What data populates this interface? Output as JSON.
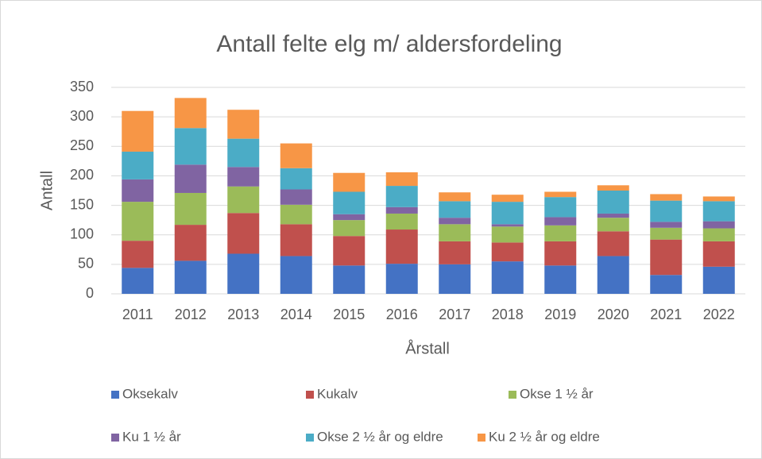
{
  "chart_data": {
    "type": "stacked_bar",
    "title": "Antall felte elg m/ aldersfordeling",
    "x_label": "Årstall",
    "y_label": "Antall",
    "categories": [
      "2011",
      "2012",
      "2013",
      "2014",
      "2015",
      "2016",
      "2017",
      "2018",
      "2019",
      "2020",
      "2021",
      "2022"
    ],
    "series": [
      {
        "name": "Oksekalv",
        "color": "#4472c4",
        "values": [
          44,
          56,
          68,
          64,
          48,
          51,
          50,
          55,
          48,
          64,
          32,
          46
        ]
      },
      {
        "name": "Kukalv",
        "color": "#c0504d",
        "values": [
          46,
          61,
          69,
          54,
          50,
          58,
          39,
          32,
          41,
          42,
          60,
          43
        ]
      },
      {
        "name": "Okse 1 ½ år",
        "color": "#9bbb59",
        "values": [
          66,
          54,
          45,
          33,
          27,
          27,
          29,
          27,
          27,
          23,
          20,
          22
        ]
      },
      {
        "name": "Ku 1 ½ år",
        "color": "#8064a2",
        "values": [
          38,
          48,
          33,
          26,
          10,
          11,
          11,
          4,
          14,
          7,
          10,
          12
        ]
      },
      {
        "name": "Okse 2 ½ år og eldre",
        "color": "#4bacc6",
        "values": [
          47,
          62,
          48,
          36,
          38,
          36,
          28,
          38,
          34,
          39,
          36,
          34
        ]
      },
      {
        "name": "Ku 2 ½ år og eldre",
        "color": "#f79646",
        "values": [
          69,
          51,
          49,
          42,
          32,
          23,
          15,
          12,
          9,
          9,
          11,
          8
        ]
      }
    ],
    "ylim": [
      0,
      350
    ],
    "yticks": [
      0,
      50,
      100,
      150,
      200,
      250,
      300,
      350
    ],
    "grid": true,
    "legend": "bottom"
  }
}
